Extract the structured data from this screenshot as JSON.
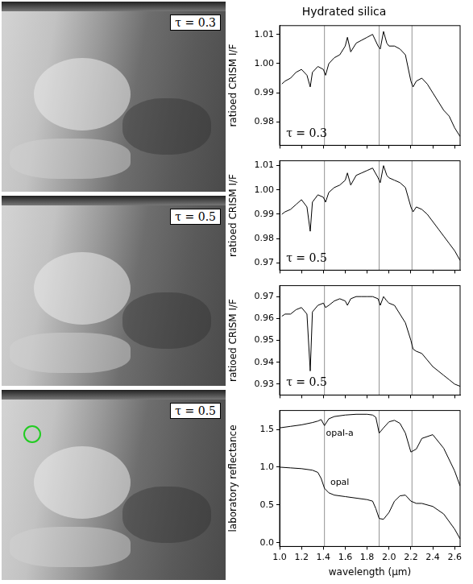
{
  "images": [
    {
      "label": "τ = 0.3"
    },
    {
      "label": "τ = 0.5"
    },
    {
      "label": "τ = 0.5",
      "marker": "circle"
    }
  ],
  "chart_data": [
    {
      "type": "line",
      "title": "Hydrated silica",
      "ylabel": "ratioed CRISM I/F",
      "x": [
        1.02,
        1.05,
        1.1,
        1.15,
        1.2,
        1.25,
        1.28,
        1.3,
        1.35,
        1.4,
        1.42,
        1.45,
        1.5,
        1.55,
        1.6,
        1.62,
        1.65,
        1.7,
        1.75,
        1.8,
        1.85,
        1.9,
        1.92,
        1.95,
        1.98,
        2.0,
        2.05,
        2.1,
        2.15,
        2.2,
        2.22,
        2.25,
        2.3,
        2.35,
        2.4,
        2.45,
        2.5,
        2.55,
        2.6,
        2.65
      ],
      "series": [
        {
          "color": "#000000",
          "values": [
            0.993,
            0.994,
            0.995,
            0.997,
            0.998,
            0.996,
            0.992,
            0.997,
            0.999,
            0.998,
            0.996,
            1.0,
            1.002,
            1.003,
            1.006,
            1.009,
            1.004,
            1.007,
            1.008,
            1.009,
            1.01,
            1.006,
            1.005,
            1.011,
            1.007,
            1.006,
            1.006,
            1.005,
            1.003,
            0.994,
            0.992,
            0.994,
            0.995,
            0.993,
            0.99,
            0.987,
            0.984,
            0.982,
            0.978,
            0.975
          ]
        }
      ],
      "xlim": [
        1.0,
        2.65
      ],
      "ylim": [
        0.972,
        1.013
      ],
      "xticks": [
        {
          "value": 1,
          "label": "1.0"
        },
        1.2,
        1.4,
        1.6,
        1.8,
        {
          "value": 2,
          "label": "2.0"
        },
        2.2,
        2.4,
        2.6
      ],
      "yticks": [
        0.98,
        0.99,
        {
          "value": 1,
          "label": "1.00"
        },
        1.01
      ],
      "grid": false,
      "tick_labels": "y",
      "vlines": [
        1.41,
        1.91,
        2.21
      ],
      "annotations": [
        {
          "text": "τ = 0.3",
          "x": 1.06,
          "y": 0.976
        }
      ]
    },
    {
      "type": "line",
      "ylabel": "ratioed CRISM I/F",
      "x": [
        1.02,
        1.05,
        1.1,
        1.15,
        1.2,
        1.25,
        1.28,
        1.3,
        1.35,
        1.4,
        1.42,
        1.45,
        1.5,
        1.55,
        1.6,
        1.62,
        1.65,
        1.7,
        1.75,
        1.8,
        1.85,
        1.9,
        1.92,
        1.95,
        1.98,
        2.0,
        2.05,
        2.1,
        2.15,
        2.2,
        2.22,
        2.25,
        2.3,
        2.35,
        2.4,
        2.45,
        2.5,
        2.55,
        2.6,
        2.65
      ],
      "series": [
        {
          "color": "#000000",
          "values": [
            0.99,
            0.991,
            0.992,
            0.994,
            0.996,
            0.993,
            0.983,
            0.995,
            0.998,
            0.997,
            0.995,
            0.999,
            1.001,
            1.002,
            1.004,
            1.007,
            1.002,
            1.006,
            1.007,
            1.008,
            1.009,
            1.005,
            1.003,
            1.01,
            1.006,
            1.005,
            1.004,
            1.003,
            1.001,
            0.993,
            0.991,
            0.993,
            0.992,
            0.99,
            0.987,
            0.984,
            0.981,
            0.978,
            0.975,
            0.971
          ]
        }
      ],
      "xlim": [
        1.0,
        2.65
      ],
      "ylim": [
        0.967,
        1.012
      ],
      "xticks": [
        {
          "value": 1,
          "label": "1.0"
        },
        1.2,
        1.4,
        1.6,
        1.8,
        {
          "value": 2,
          "label": "2.0"
        },
        2.2,
        2.4,
        2.6
      ],
      "yticks": [
        0.97,
        0.98,
        0.99,
        {
          "value": 1,
          "label": "1.00"
        },
        1.01
      ],
      "grid": false,
      "tick_labels": "y",
      "vlines": [
        1.41,
        1.91,
        2.21
      ],
      "annotations": [
        {
          "text": "τ = 0.5",
          "x": 1.06,
          "y": 0.9715
        }
      ]
    },
    {
      "type": "line",
      "ylabel": "ratioed CRISM I/F",
      "x": [
        1.02,
        1.05,
        1.1,
        1.15,
        1.2,
        1.25,
        1.28,
        1.3,
        1.35,
        1.4,
        1.42,
        1.45,
        1.5,
        1.55,
        1.6,
        1.62,
        1.65,
        1.7,
        1.75,
        1.8,
        1.85,
        1.9,
        1.92,
        1.95,
        1.98,
        2.0,
        2.05,
        2.1,
        2.15,
        2.2,
        2.22,
        2.25,
        2.3,
        2.35,
        2.4,
        2.45,
        2.5,
        2.55,
        2.6,
        2.65
      ],
      "series": [
        {
          "color": "#000000",
          "values": [
            0.961,
            0.962,
            0.962,
            0.964,
            0.965,
            0.962,
            0.936,
            0.963,
            0.966,
            0.967,
            0.965,
            0.966,
            0.968,
            0.969,
            0.968,
            0.966,
            0.969,
            0.97,
            0.97,
            0.97,
            0.97,
            0.969,
            0.966,
            0.97,
            0.968,
            0.967,
            0.966,
            0.962,
            0.958,
            0.95,
            0.946,
            0.945,
            0.944,
            0.941,
            0.938,
            0.936,
            0.934,
            0.932,
            0.93,
            0.929
          ]
        }
      ],
      "xlim": [
        1.0,
        2.65
      ],
      "ylim": [
        0.925,
        0.975
      ],
      "xticks": [
        {
          "value": 1,
          "label": "1.0"
        },
        1.2,
        1.4,
        1.6,
        1.8,
        {
          "value": 2,
          "label": "2.0"
        },
        2.2,
        2.4,
        2.6
      ],
      "yticks": [
        0.93,
        0.94,
        0.95,
        0.96,
        0.97
      ],
      "grid": false,
      "tick_labels": "y",
      "vlines": [
        1.41,
        1.91,
        2.21
      ],
      "annotations": [
        {
          "text": "τ = 0.5",
          "x": 1.06,
          "y": 0.9305
        }
      ]
    },
    {
      "type": "line",
      "ylabel": "laboratory reflectance",
      "xlabel": "wavelength (μm)",
      "x": [
        1.0,
        1.1,
        1.2,
        1.3,
        1.35,
        1.38,
        1.41,
        1.45,
        1.5,
        1.6,
        1.7,
        1.8,
        1.85,
        1.88,
        1.91,
        1.95,
        2.0,
        2.05,
        2.1,
        2.15,
        2.2,
        2.25,
        2.3,
        2.4,
        2.5,
        2.6,
        2.65
      ],
      "series": [
        {
          "color": "#000000",
          "values": [
            1.52,
            1.54,
            1.56,
            1.59,
            1.61,
            1.63,
            1.55,
            1.64,
            1.67,
            1.69,
            1.7,
            1.7,
            1.69,
            1.66,
            1.45,
            1.52,
            1.6,
            1.62,
            1.58,
            1.45,
            1.2,
            1.24,
            1.38,
            1.43,
            1.25,
            0.95,
            0.75
          ]
        },
        {
          "color": "#000000",
          "values": [
            1.0,
            0.99,
            0.98,
            0.96,
            0.93,
            0.85,
            0.72,
            0.66,
            0.63,
            0.61,
            0.59,
            0.57,
            0.55,
            0.45,
            0.32,
            0.31,
            0.4,
            0.55,
            0.62,
            0.63,
            0.55,
            0.52,
            0.52,
            0.48,
            0.38,
            0.18,
            0.05
          ]
        }
      ],
      "xlim": [
        1.0,
        2.65
      ],
      "ylim": [
        -0.05,
        1.75
      ],
      "xticks": [
        {
          "value": 1,
          "label": "1.0"
        },
        1.2,
        1.4,
        1.6,
        1.8,
        {
          "value": 2,
          "label": "2.0"
        },
        2.2,
        2.4,
        2.6
      ],
      "yticks": [
        {
          "value": 0,
          "label": "0.0"
        },
        0.5,
        {
          "value": 1,
          "label": "1.0"
        },
        1.5
      ],
      "grid": false,
      "vlines": [
        1.41,
        1.91,
        2.21
      ],
      "annotations": [
        {
          "text": "opal-a",
          "x": 1.55,
          "y": 1.45
        },
        {
          "text": "opal",
          "x": 1.55,
          "y": 0.8
        }
      ]
    }
  ]
}
